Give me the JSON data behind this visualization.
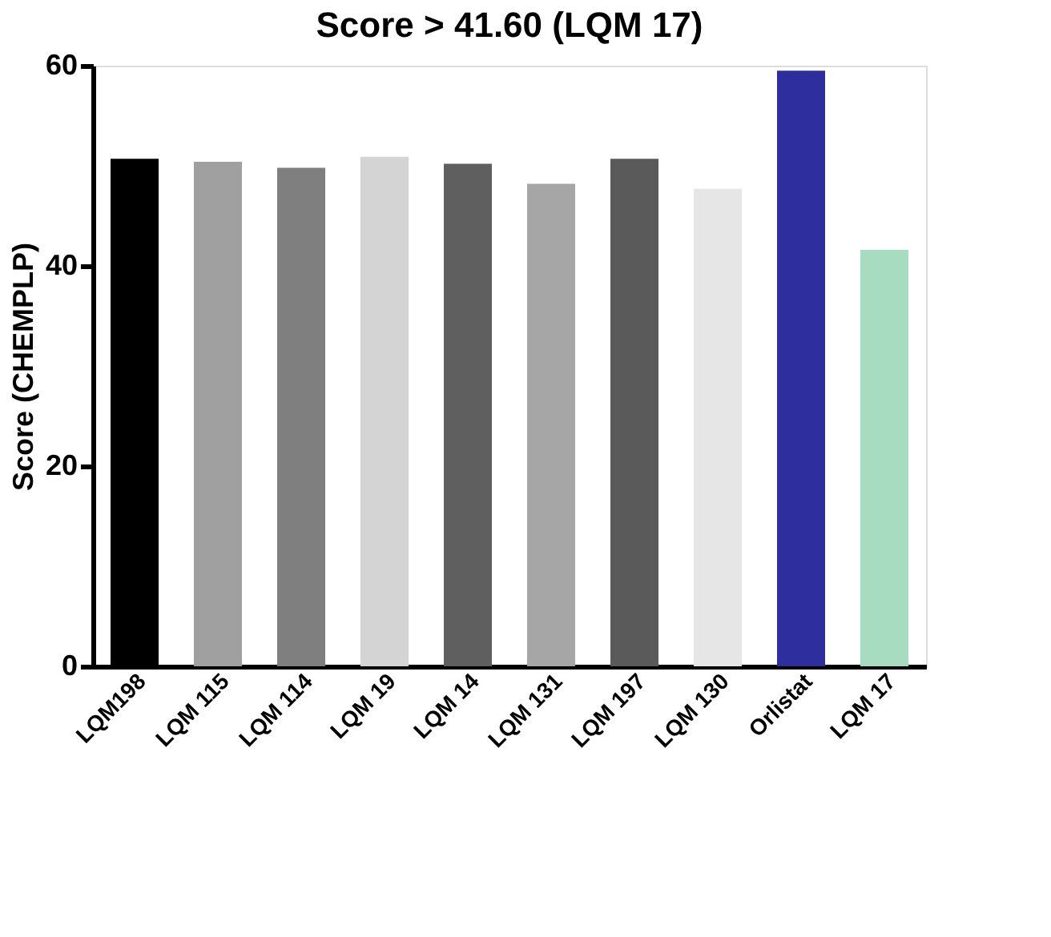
{
  "chart_data": {
    "type": "bar",
    "title": "Score > 41.60 (LQM 17)",
    "ylabel": "Score (CHEMPLP)",
    "categories": [
      "LQM198",
      "LQM 115",
      "LQM 114",
      "LQM 19",
      "LQM 14",
      "LQM 131",
      "LQM 197",
      "LQM 130",
      "Orlistat",
      "LQM 17"
    ],
    "values": [
      50.7,
      50.4,
      49.8,
      50.9,
      50.2,
      48.2,
      50.7,
      47.7,
      59.5,
      41.6
    ],
    "colors": [
      "#000000",
      "#a0a0a0",
      "#7f7f7f",
      "#d4d4d4",
      "#5f5f5f",
      "#a6a6a6",
      "#5a5a5a",
      "#e6e6e6",
      "#2e2e9e",
      "#a8dcc0"
    ],
    "ylim": [
      0,
      60
    ],
    "yticks": [
      0,
      20,
      40,
      60
    ],
    "grid": false
  }
}
